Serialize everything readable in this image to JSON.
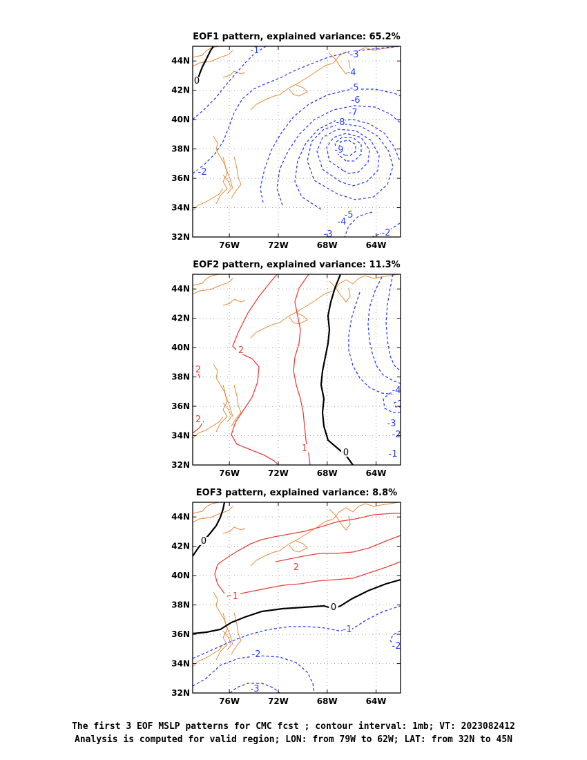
{
  "chart_data": [
    {
      "type": "contour",
      "title": "EOF1 pattern, explained variance: 65.2%",
      "xlim": [
        -79,
        -62
      ],
      "ylim": [
        32,
        45
      ],
      "xticks": [
        "76W",
        "72W",
        "68W",
        "64W"
      ],
      "yticks": [
        "32N",
        "34N",
        "36N",
        "38N",
        "40N",
        "42N",
        "44N"
      ],
      "grid": "dotted",
      "contour_labels": [
        "0",
        "-1",
        "-2",
        "-3",
        "-4",
        "-5",
        "-6",
        "-7",
        "-8",
        "-9",
        "-5",
        "-4",
        "-3",
        "-2"
      ]
    },
    {
      "type": "contour",
      "title": "EOF2 pattern, explained variance: 11.3%",
      "xlim": [
        -79,
        -62
      ],
      "ylim": [
        32,
        45
      ],
      "xticks": [
        "76W",
        "72W",
        "68W",
        "64W"
      ],
      "yticks": [
        "32N",
        "34N",
        "36N",
        "38N",
        "40N",
        "42N",
        "44N"
      ],
      "grid": "dotted",
      "contour_labels": [
        "2",
        "2",
        "2",
        "1",
        "0",
        "-4",
        "-3",
        "-2",
        "-1"
      ]
    },
    {
      "type": "contour",
      "title": "EOF3 pattern, explained variance: 8.8%",
      "xlim": [
        -79,
        -62
      ],
      "ylim": [
        32,
        45
      ],
      "xticks": [
        "76W",
        "72W",
        "68W",
        "64W"
      ],
      "yticks": [
        "32N",
        "34N",
        "36N",
        "38N",
        "40N",
        "42N",
        "44N"
      ],
      "grid": "dotted",
      "contour_labels": [
        "0",
        "2",
        "1",
        "0",
        "-1",
        "-2",
        "-2",
        "-3"
      ]
    }
  ],
  "footer": {
    "line1": "The first 3 EOF MSLP patterns for CMC fcst ; contour interval: 1mb; VT: 2023082412",
    "line2": "Analysis is computed for valid region; LON: from 79W to 62W; LAT: from 32N to 45N"
  },
  "colors": {
    "positive": "#e8403b",
    "negative": "#2b3ff0",
    "zero": "#000000",
    "coast": "#e58a3a",
    "grid": "#999999"
  }
}
